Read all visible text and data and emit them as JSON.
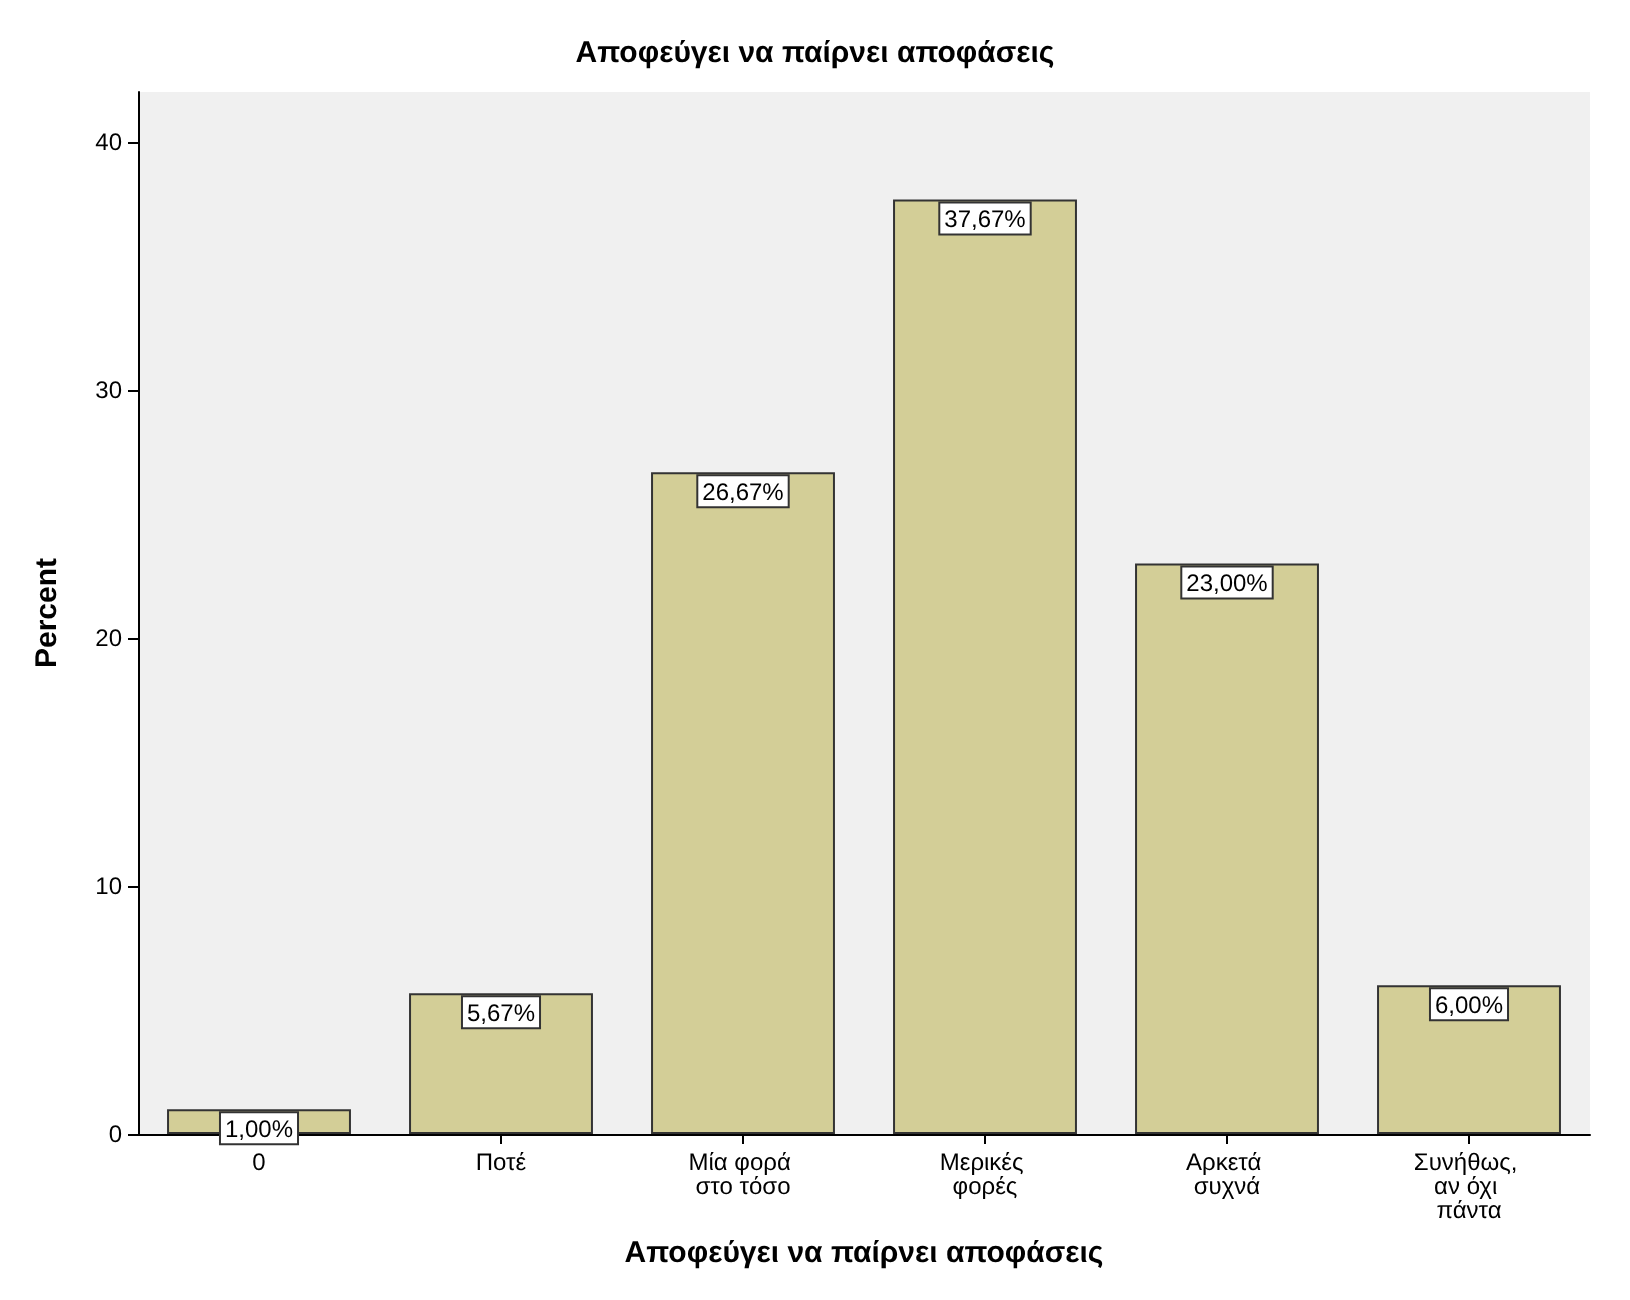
{
  "chart_data": {
    "type": "bar",
    "title": "Αποφεύγει να παίρνει αποφάσεις",
    "xlabel": "Αποφεύγει να παίρνει αποφάσεις",
    "ylabel": "Percent",
    "categories": [
      "0",
      "Ποτέ",
      "Μία φορά στο τόσο",
      "Μερικές φορές",
      "Αρκετά συχνά",
      "Συνήθως, αν όχι πάντα"
    ],
    "values": [
      1,
      5.67,
      26.67,
      37.67,
      23,
      6
    ],
    "value_labels": [
      "1,00%",
      "5,67%",
      "26,67%",
      "37,67%",
      "23,00%",
      "6,00%"
    ],
    "color": "#d3ce97",
    "ylim": [
      0,
      42
    ],
    "yticks": [
      0,
      10,
      20,
      30,
      40
    ],
    "grid": false
  }
}
